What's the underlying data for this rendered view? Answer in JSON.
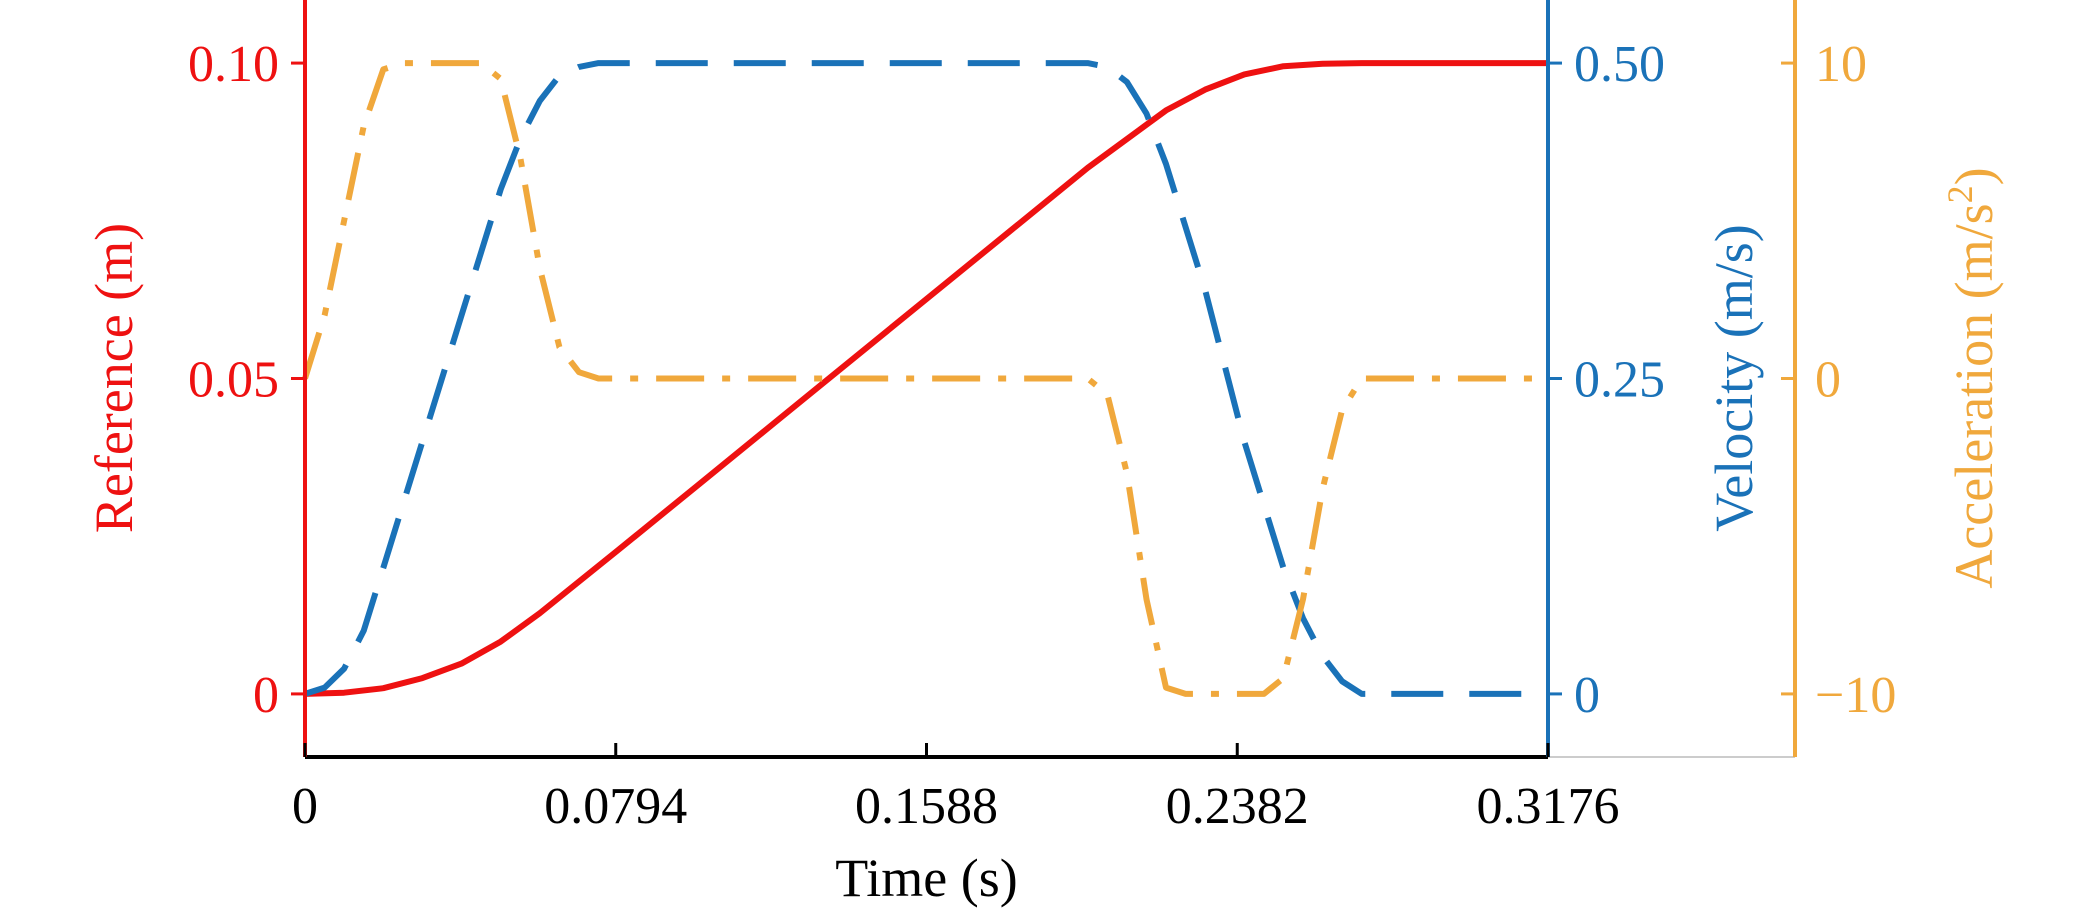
{
  "colors": {
    "reference": "#ee1111",
    "velocity": "#1a72b8",
    "acceleration": "#f0a83c",
    "axis": "#000000"
  },
  "chart_data": {
    "type": "line",
    "xlabel": "Time (s)",
    "xlim": [
      0,
      0.3176
    ],
    "x_ticks": [
      0,
      0.0794,
      0.1588,
      0.2382,
      0.3176
    ],
    "x_tick_labels": [
      "0",
      "0.0794",
      "0.1588",
      "0.2382",
      "0.3176"
    ],
    "axes": {
      "reference": {
        "label": "Reference (m)",
        "ylim": [
          -0.01,
          0.11
        ],
        "ticks": [
          0,
          0.05,
          0.1
        ],
        "tick_labels": [
          "0",
          "0.05",
          "0.10"
        ]
      },
      "velocity": {
        "label": "Velocity (m/s)",
        "ylim": [
          -0.05,
          0.55
        ],
        "ticks": [
          0,
          0.25,
          0.5
        ],
        "tick_labels": [
          "0",
          "0.25",
          "0.50"
        ]
      },
      "acceleration": {
        "label_main": "Acceleration (m/s",
        "label_sup": "2",
        "label_end": ")",
        "ylim": [
          -12,
          12
        ],
        "ticks": [
          -10,
          0,
          10
        ],
        "tick_labels": [
          "−10",
          "0",
          "10"
        ]
      }
    },
    "series": [
      {
        "key": "reference",
        "style": "solid",
        "x": [
          0,
          0.01,
          0.02,
          0.03,
          0.04,
          0.05,
          0.06,
          0.07,
          0.08,
          0.1,
          0.12,
          0.14,
          0.16,
          0.18,
          0.2,
          0.22,
          0.23,
          0.24,
          0.25,
          0.26,
          0.27,
          0.3176
        ],
        "values": [
          0,
          0.0002,
          0.0009,
          0.0025,
          0.0048,
          0.0083,
          0.0128,
          0.0178,
          0.0228,
          0.0329,
          0.043,
          0.0531,
          0.0632,
          0.0733,
          0.0834,
          0.0925,
          0.0958,
          0.0982,
          0.0995,
          0.0999,
          0.1,
          0.1
        ]
      },
      {
        "key": "velocity",
        "style": "dashed",
        "x": [
          0,
          0.005,
          0.01,
          0.015,
          0.02,
          0.03,
          0.04,
          0.05,
          0.055,
          0.06,
          0.065,
          0.07,
          0.075,
          0.2,
          0.205,
          0.21,
          0.215,
          0.22,
          0.23,
          0.24,
          0.25,
          0.255,
          0.26,
          0.265,
          0.27,
          0.3176
        ],
        "values": [
          0,
          0.005,
          0.02,
          0.05,
          0.1,
          0.2,
          0.3,
          0.4,
          0.44,
          0.47,
          0.49,
          0.497,
          0.5,
          0.5,
          0.497,
          0.485,
          0.46,
          0.42,
          0.32,
          0.2,
          0.1,
          0.06,
          0.03,
          0.01,
          0,
          0
        ]
      },
      {
        "key": "acceleration",
        "style": "dashdot",
        "x": [
          0,
          0.005,
          0.01,
          0.015,
          0.02,
          0.025,
          0.045,
          0.05,
          0.055,
          0.06,
          0.065,
          0.07,
          0.075,
          0.2,
          0.205,
          0.21,
          0.215,
          0.22,
          0.225,
          0.245,
          0.25,
          0.255,
          0.26,
          0.265,
          0.27,
          0.3176
        ],
        "values": [
          0,
          2,
          5,
          8,
          9.8,
          10,
          10,
          9.5,
          7,
          3.5,
          1,
          0.2,
          0,
          0,
          -0.5,
          -3,
          -7,
          -9.8,
          -10,
          -10,
          -9.5,
          -7,
          -3.5,
          -1,
          0,
          0
        ]
      }
    ]
  }
}
